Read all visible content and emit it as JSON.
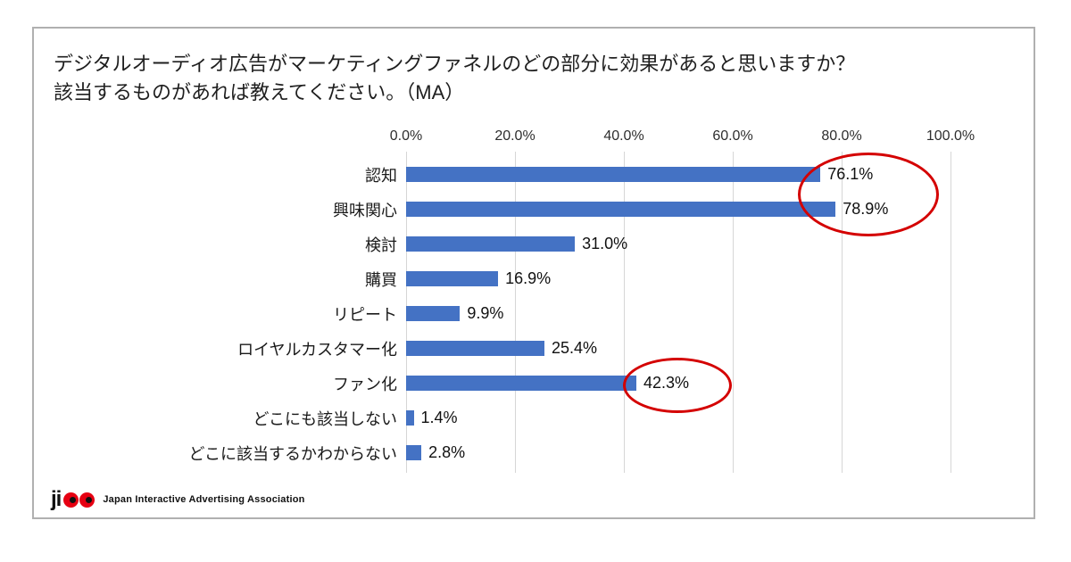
{
  "title": {
    "line1": "デジタルオーディオ広告がマーケティングファネルのどの部分に効果があると思いますか？",
    "line2": "該当するものがあれば教えてください。（MA）"
  },
  "chart_data": {
    "type": "bar",
    "orientation": "horizontal",
    "title": "デジタルオーディオ広告がマーケティングファネルのどの部分に効果があると思いますか？該当するものがあれば教えてください。（MA）",
    "categories": [
      "認知",
      "興味関心",
      "検討",
      "購買",
      "リピート",
      "ロイヤルカスタマー化",
      "ファン化",
      "どこにも該当しない",
      "どこに該当するかわからない"
    ],
    "values": [
      76.1,
      78.9,
      31.0,
      16.9,
      9.9,
      25.4,
      42.3,
      1.4,
      2.8
    ],
    "value_labels": [
      "76.1%",
      "78.9%",
      "31.0%",
      "16.9%",
      "9.9%",
      "25.4%",
      "42.3%",
      "1.4%",
      "2.8%"
    ],
    "x_ticks": [
      "0.0%",
      "20.0%",
      "40.0%",
      "60.0%",
      "80.0%",
      "100.0%"
    ],
    "xlim": [
      0,
      100
    ],
    "grid": true,
    "bar_color": "#4472C4",
    "gridline_color": "#d6d6d6",
    "annotations": [
      {
        "type": "ellipse",
        "highlights": "76.1% と 78.9%",
        "color": "#d40000"
      },
      {
        "type": "ellipse",
        "highlights": "42.3%",
        "color": "#d40000"
      }
    ]
  },
  "footer": {
    "logo_text": "ji",
    "org_name": "Japan Interactive Advertising Association"
  }
}
